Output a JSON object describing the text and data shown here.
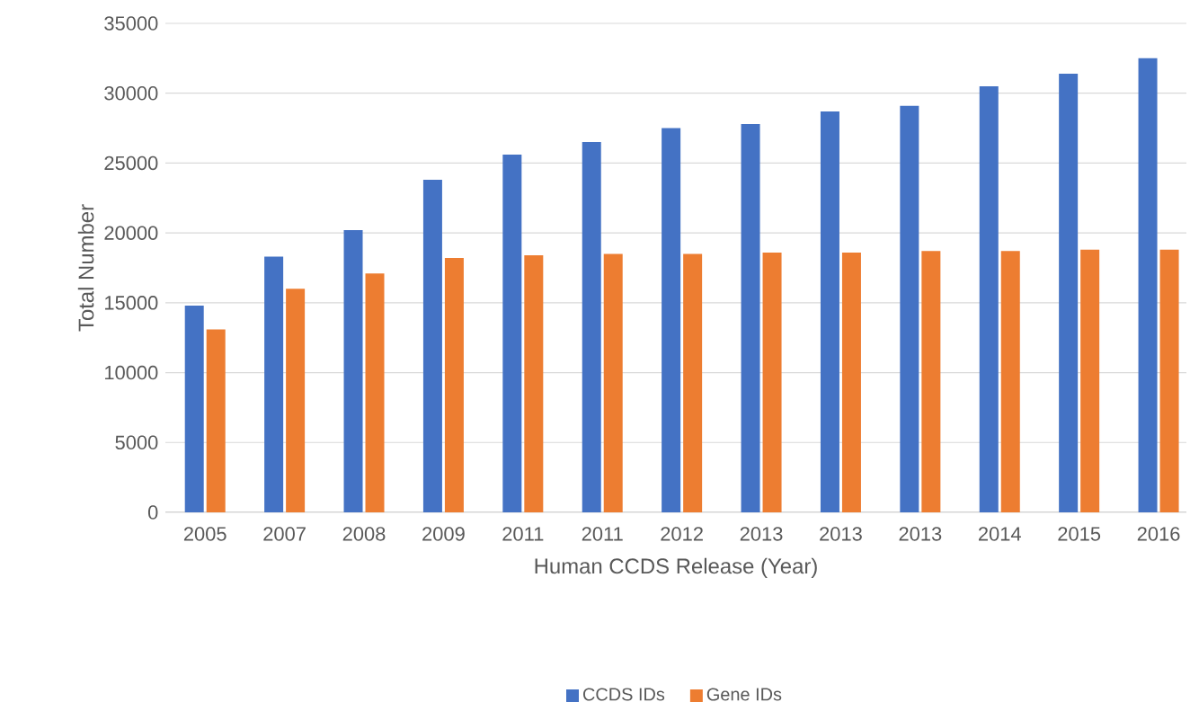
{
  "chart_data": {
    "type": "bar",
    "xlabel": "Human CCDS Release (Year)",
    "ylabel": "Total Number",
    "categories": [
      "2005",
      "2007",
      "2008",
      "2009",
      "2011",
      "2011",
      "2012",
      "2013",
      "2013",
      "2013",
      "2014",
      "2015",
      "2016"
    ],
    "series": [
      {
        "name": "CCDS IDs",
        "color": "#4472c4",
        "values": [
          14800,
          18300,
          20200,
          23800,
          25600,
          26500,
          27500,
          27800,
          28700,
          29100,
          30500,
          31400,
          32500
        ]
      },
      {
        "name": "Gene IDs",
        "color": "#ed7d31",
        "values": [
          13100,
          16000,
          17100,
          18200,
          18400,
          18500,
          18500,
          18600,
          18600,
          18700,
          18700,
          18800,
          18800
        ]
      }
    ],
    "ylim": [
      0,
      35000
    ],
    "yticks": [
      0,
      5000,
      10000,
      15000,
      20000,
      25000,
      30000,
      35000
    ],
    "grid": "y",
    "legend": "bottom"
  }
}
